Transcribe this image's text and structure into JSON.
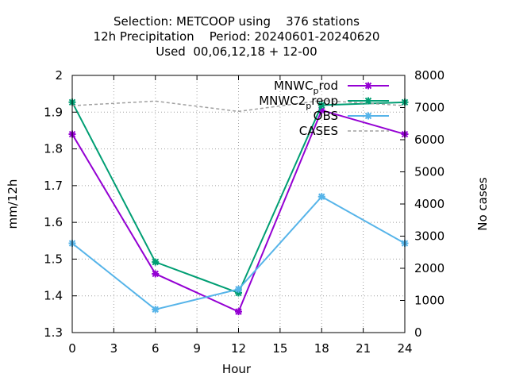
{
  "chart_data": {
    "type": "line",
    "title_lines": [
      "Selection: METCOOP using    376 stations",
      "12h Precipitation    Period: 20240601-20240620",
      "Used  00,06,12,18 + 12-00"
    ],
    "xlabel": "Hour",
    "ylabel": "mm/12h",
    "y2label": "No cases",
    "x": [
      0,
      6,
      12,
      18,
      24
    ],
    "xlim": [
      0,
      24
    ],
    "xticks": [
      0,
      3,
      6,
      9,
      12,
      15,
      18,
      21,
      24
    ],
    "ylim": [
      1.3,
      2.0
    ],
    "yticks": [
      1.3,
      1.4,
      1.5,
      1.6,
      1.7,
      1.8,
      1.9,
      2
    ],
    "y2lim": [
      0,
      8000
    ],
    "y2ticks": [
      0,
      1000,
      2000,
      3000,
      4000,
      5000,
      6000,
      7000,
      8000
    ],
    "grid": true,
    "legend_position": "top-right",
    "series": [
      {
        "name": "MNWC_prod",
        "label_main": "MNWC",
        "label_sub": "p",
        "label_rest": "rod",
        "axis": "y",
        "color": "#9400d3",
        "values": [
          1.84,
          1.46,
          1.357,
          1.905,
          1.84
        ]
      },
      {
        "name": "MNWC2_preop",
        "label_main": "MNWC2",
        "label_sub": "p",
        "label_rest": "reop",
        "axis": "y",
        "color": "#009e73",
        "values": [
          1.927,
          1.492,
          1.408,
          1.919,
          1.927
        ]
      },
      {
        "name": "OBS",
        "label_main": "OBS",
        "label_sub": "",
        "label_rest": "",
        "axis": "y",
        "color": "#56b4e9",
        "values": [
          1.543,
          1.363,
          1.418,
          1.67,
          1.543
        ]
      },
      {
        "name": "CASES",
        "label_main": "CASES",
        "label_sub": "",
        "label_rest": "",
        "axis": "y2",
        "color": "#a0a0a0",
        "dashed": true,
        "values": [
          7060,
          7200,
          6880,
          7220,
          7060
        ]
      }
    ]
  }
}
